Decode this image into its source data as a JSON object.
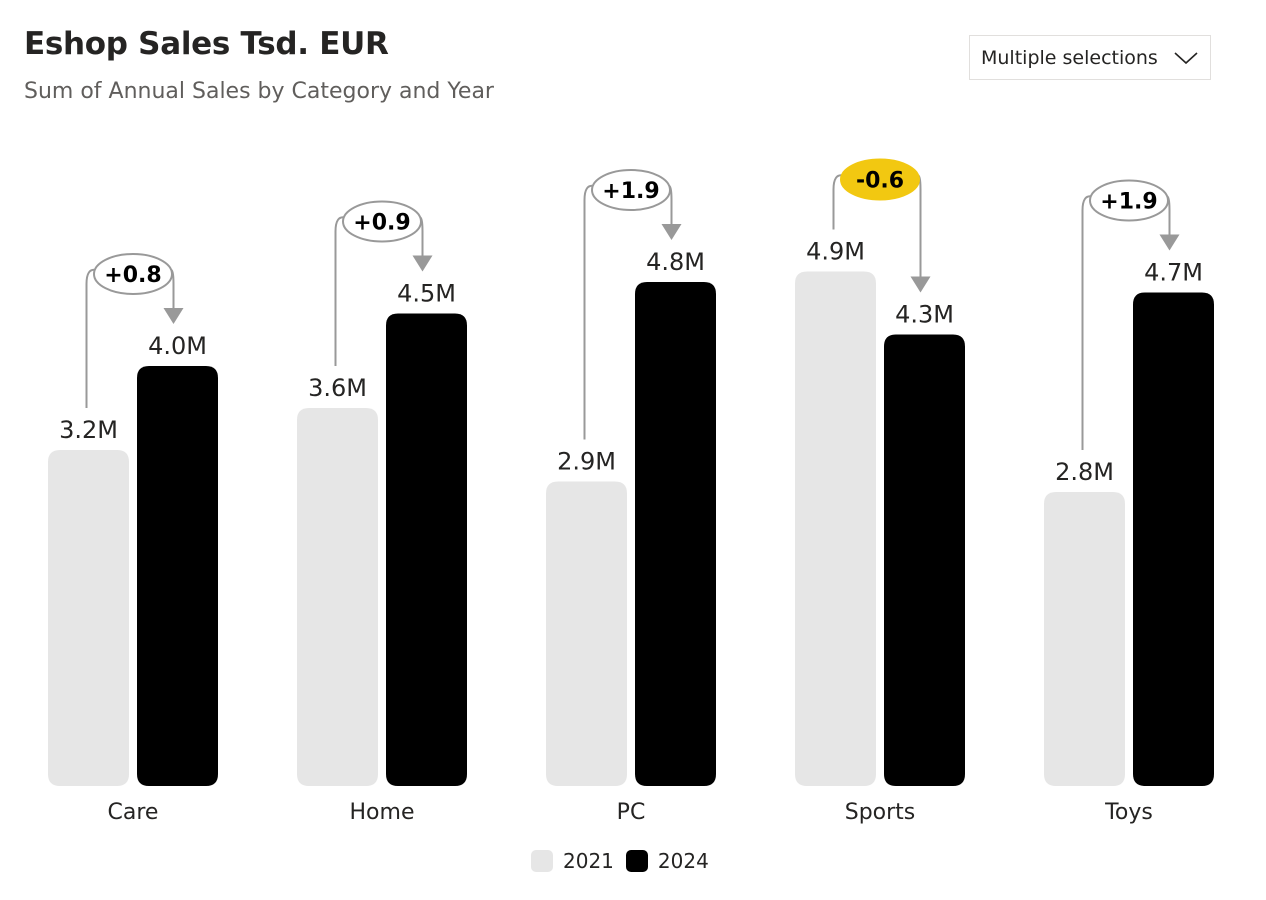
{
  "header": {
    "title": "Eshop Sales Tsd. EUR",
    "subtitle": "Sum of Annual Sales by Category and Year"
  },
  "slicer": {
    "label": "Multiple selections"
  },
  "colors": {
    "y2021": "#e6e6e6",
    "y2024": "#000000",
    "highlight": "#f2c811",
    "arrow": "#999999"
  },
  "chart_data": {
    "type": "bar",
    "title": "Eshop Sales Tsd. EUR",
    "subtitle": "Sum of Annual Sales by Category and Year",
    "categories": [
      "Care",
      "Home",
      "PC",
      "Sports",
      "Toys"
    ],
    "series": [
      {
        "name": "2021",
        "values": [
          3.2,
          3.6,
          2.9,
          4.9,
          2.8
        ],
        "labels": [
          "3.2M",
          "3.6M",
          "2.9M",
          "4.9M",
          "2.8M"
        ]
      },
      {
        "name": "2024",
        "values": [
          4.0,
          4.5,
          4.8,
          4.3,
          4.7
        ],
        "labels": [
          "4.0M",
          "4.5M",
          "4.8M",
          "4.3M",
          "4.7M"
        ]
      }
    ],
    "deltas": [
      {
        "label": "+0.8",
        "highlight": false
      },
      {
        "label": "+0.9",
        "highlight": false
      },
      {
        "label": "+1.9",
        "highlight": false
      },
      {
        "label": "-0.6",
        "highlight": true
      },
      {
        "label": "+1.9",
        "highlight": false
      }
    ],
    "units": "M",
    "ylim": [
      0,
      4.9
    ],
    "legend": [
      "2021",
      "2024"
    ],
    "legend_position": "bottom-center"
  }
}
